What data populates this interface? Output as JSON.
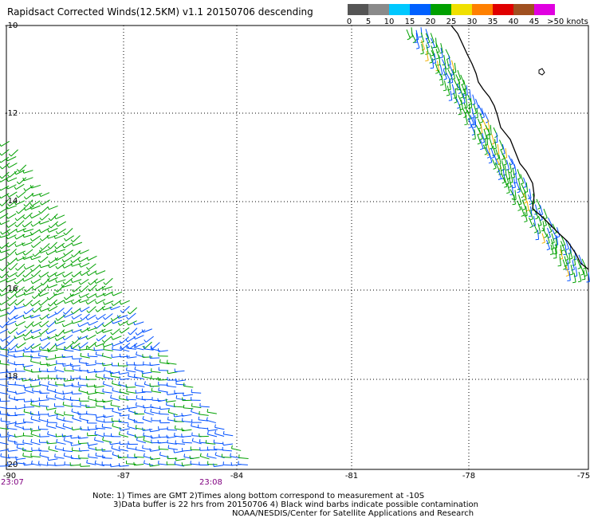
{
  "title": "Rapidsact Corrected Winds(12.5KM) v1.1 20150706 descending",
  "legend": {
    "labels": [
      "0",
      "5",
      "10",
      "15",
      "20",
      "25",
      "30",
      "35",
      "40",
      "45",
      ">50 knots"
    ],
    "colors": [
      "#555555",
      "#8a8a8a",
      "#00c8ff",
      "#0060ff",
      "#00a000",
      "#f0e000",
      "#ff8000",
      "#e00000",
      "#a05020",
      "#e000e0",
      "#700090"
    ]
  },
  "axes": {
    "lat_labels": [
      "-10",
      "-12",
      "-14",
      "-16",
      "-18",
      "-20"
    ],
    "lon_labels": [
      "-90",
      "-87",
      "-84",
      "-81",
      "-78",
      "-75"
    ]
  },
  "pass_times": [
    "23:07",
    "23:08"
  ],
  "notes": [
    "Note: 1) Times are GMT 2)Times along bottom correspond to measurement at -10S",
    "3)Data buffer is 22 hrs from 20150706 4) Black wind barbs indicate possible contamination",
    "NOAA/NESDIS/Center for Satellite Applications and Research"
  ]
}
